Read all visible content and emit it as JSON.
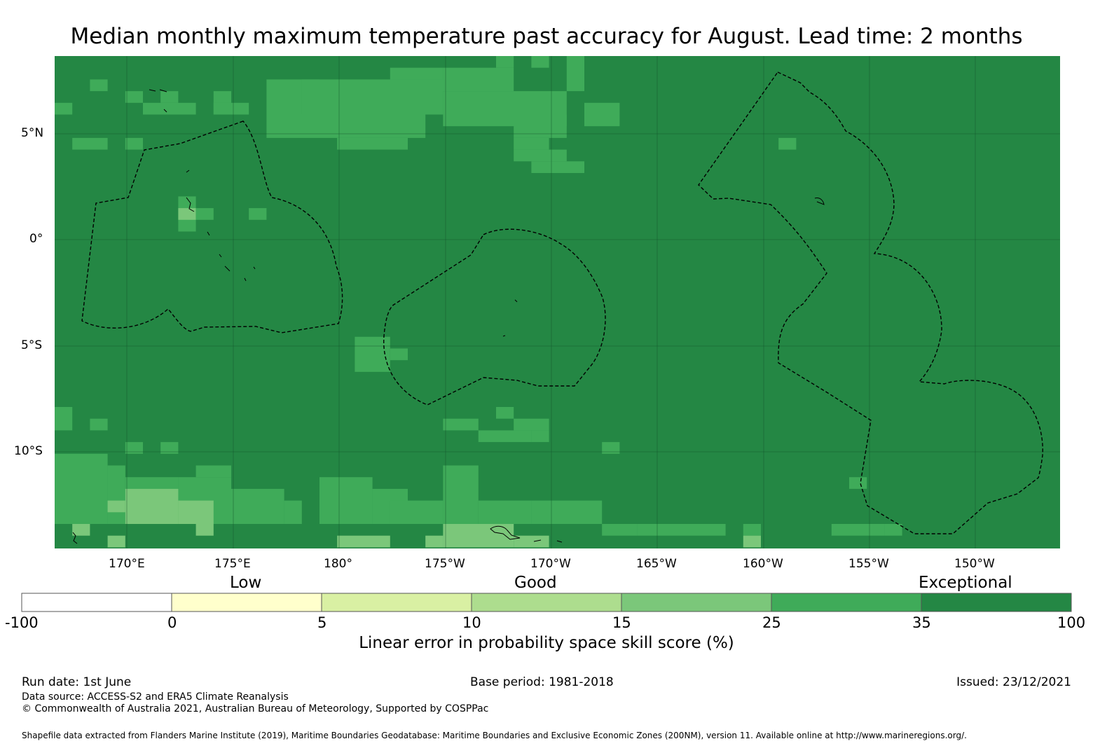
{
  "title": "Median monthly maximum temperature past accuracy for August. Lead time: 2 months",
  "colors": {
    "dark_green": "#248744",
    "mid_green": "#3fab59",
    "light_green": "#7bc77a",
    "pale_green": "#addd8e",
    "yellow_green": "#d9f0a3",
    "pale_yellow": "#ffffcc",
    "white": "#ffffff"
  },
  "map": {
    "lat_labels": [
      "5°N",
      "0°",
      "5°S",
      "10°S"
    ],
    "lon_labels": [
      "170°E",
      "175°E",
      "180°",
      "175°W",
      "170°W",
      "165°W",
      "160°W",
      "155°W",
      "150°W"
    ]
  },
  "colorbar": {
    "categories": [
      "Low",
      "Good",
      "Exceptional"
    ],
    "ticks": [
      "-100",
      "0",
      "5",
      "10",
      "15",
      "25",
      "35",
      "100"
    ],
    "label": "Linear error in probability space skill score (%)"
  },
  "footer": {
    "run_date": "Run date: 1st June",
    "base_period": "Base period: 1981-2018",
    "issued": "Issued: 23/12/2021",
    "data_source": "Data source: ACCESS-S2 and ERA5 Climate Reanalysis",
    "copyright": "© Commonwealth of Australia 2021, Australian Bureau of Meteorology, Supported by COSPPac",
    "shapefile": "Shapefile data extracted from Flanders Marine Institute (2019), Maritime Boundaries Geodatabase: Maritime Boundaries and Exclusive Economic Zones (200NM), version 11. Available online at http://www.marineregions.org/."
  }
}
